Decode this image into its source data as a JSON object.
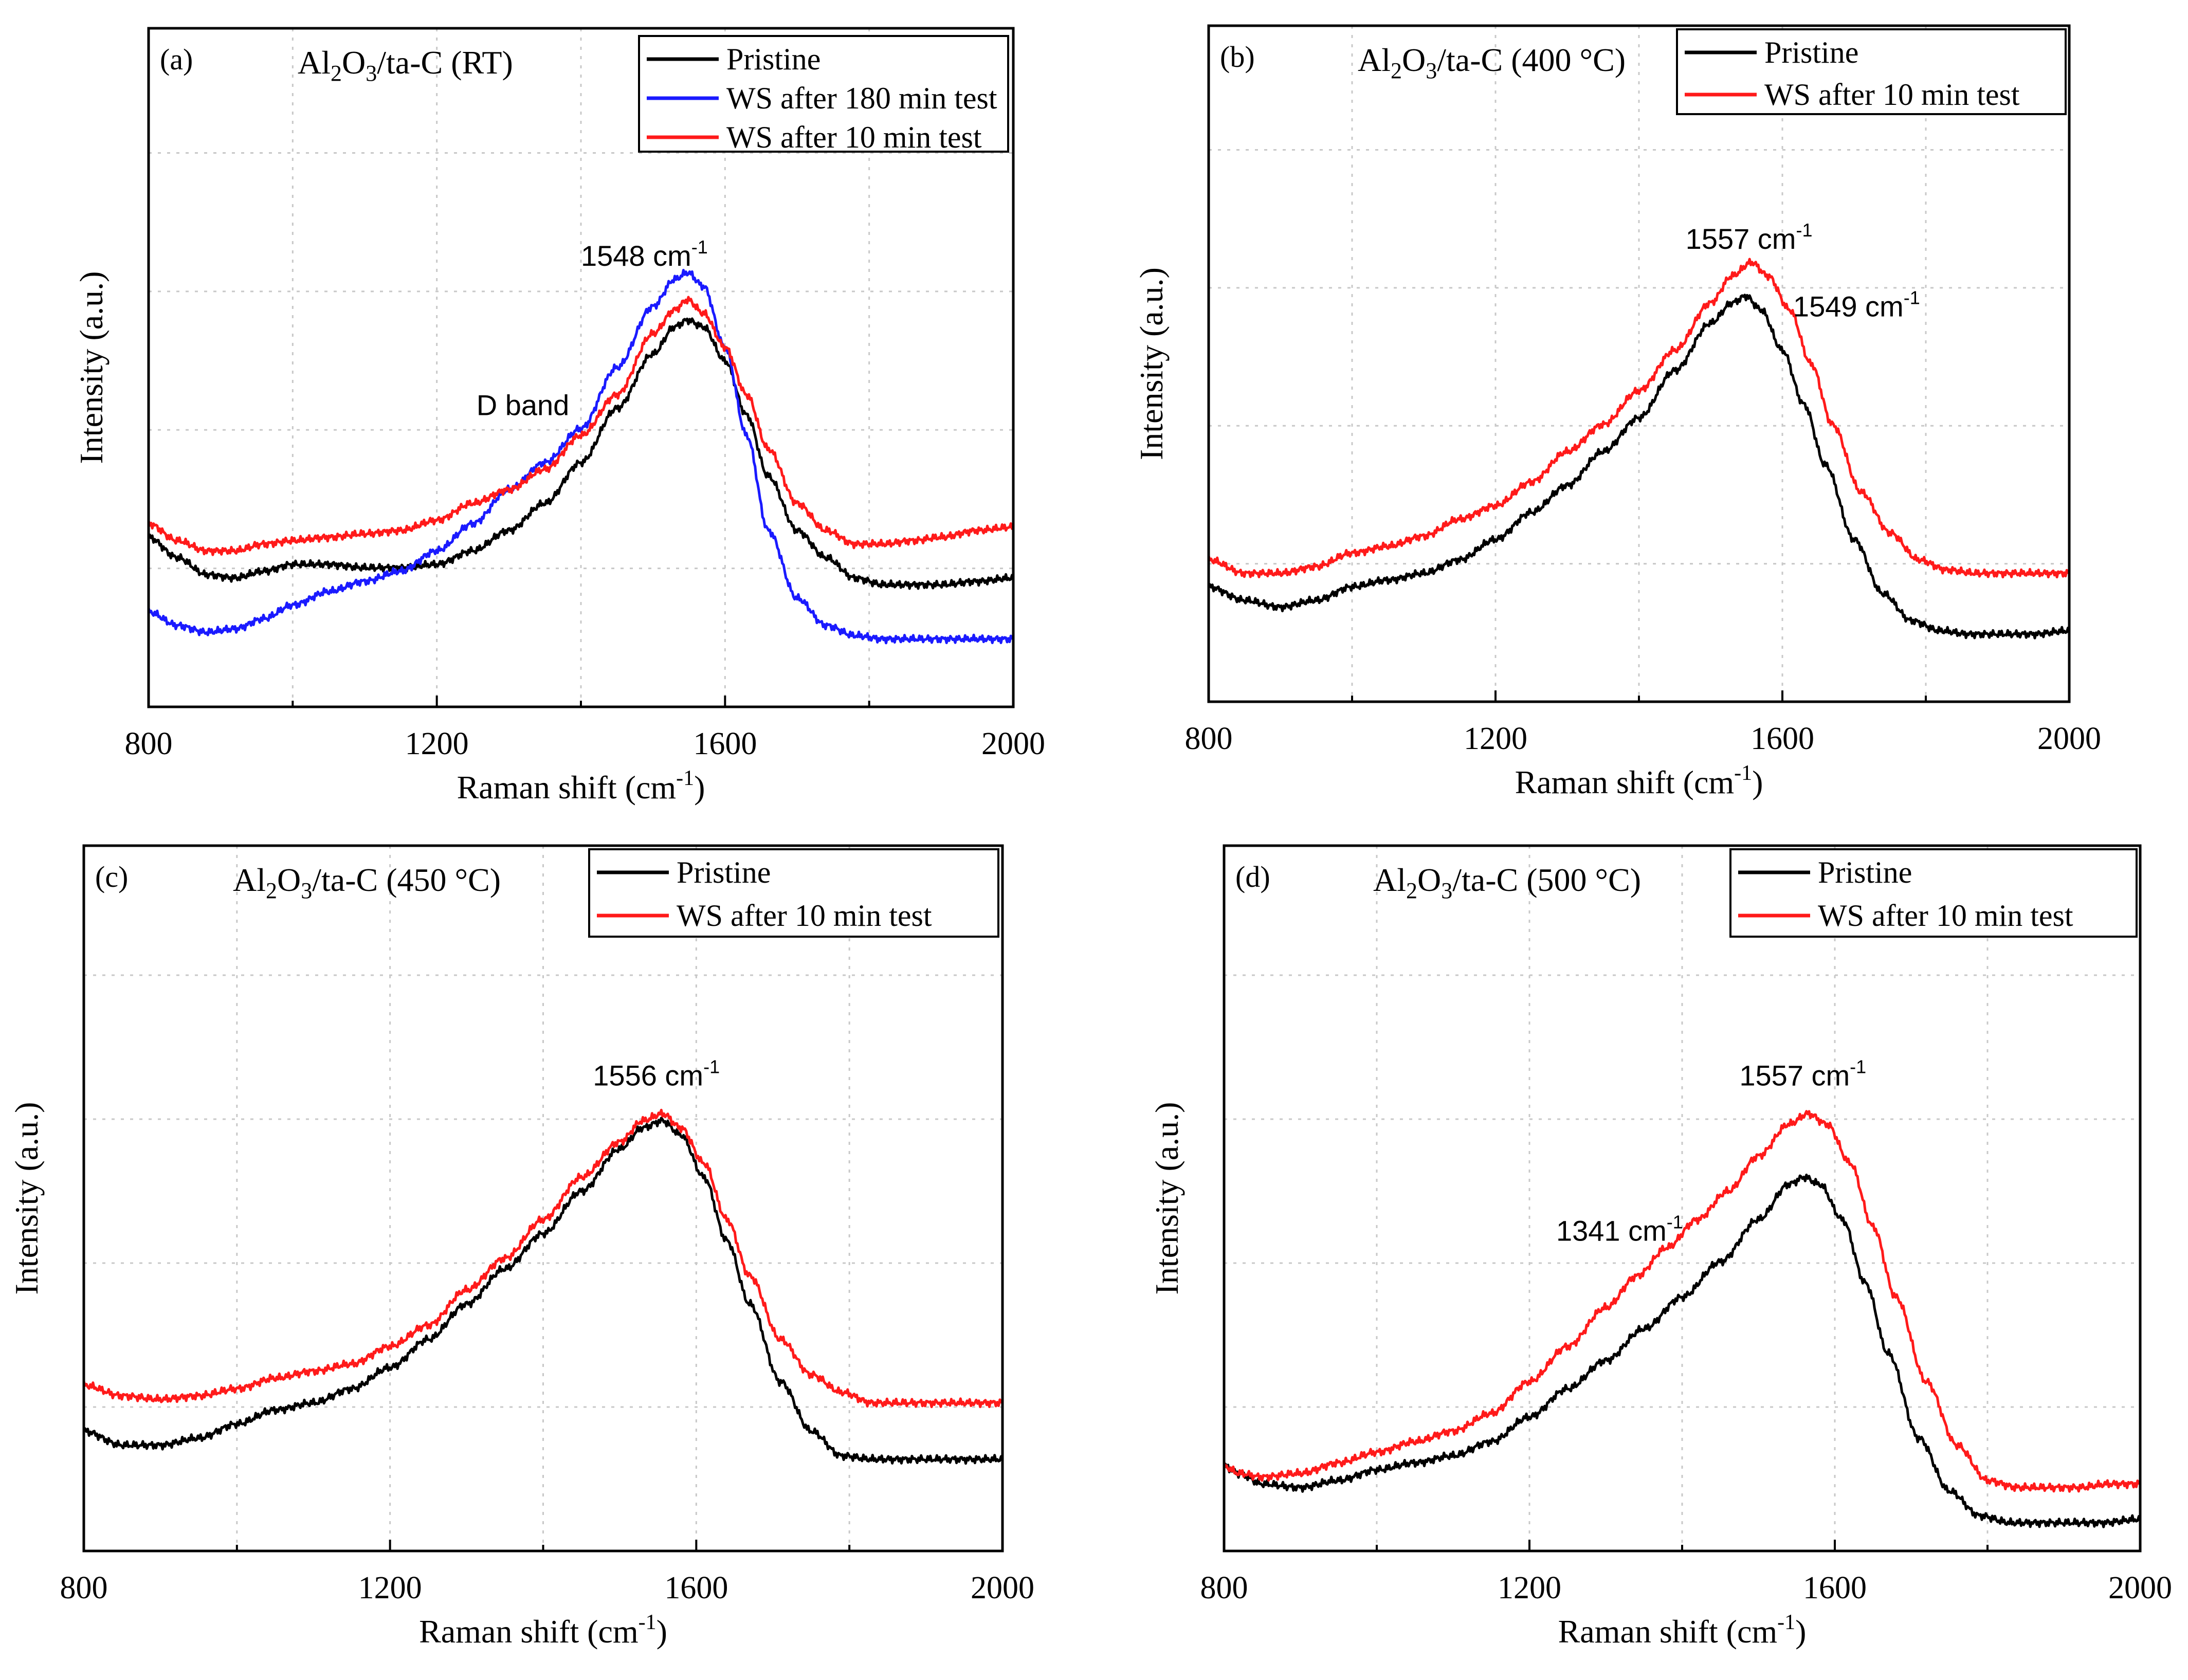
{
  "colors": {
    "pristine": "#000000",
    "ws180": "#1a1aff",
    "ws10": "#ff1a1a"
  },
  "chart_data": [
    {
      "type": "line",
      "panel_label": "(a)",
      "title_parts": [
        "Al",
        "2",
        "O",
        "3",
        "/ta-C (RT)"
      ],
      "xlabel_main": "Raman shift (cm",
      "xlabel_sup": "-1",
      "xlabel_end": ")",
      "ylabel": "Intensity (a.u.)",
      "xlim": [
        800,
        2000
      ],
      "ylim": [
        0,
        100
      ],
      "xticks": [
        "800",
        "1200",
        "1600",
        "2000"
      ],
      "legend": [
        "Pristine",
        "WS after 180 min test",
        "WS after 10 min test"
      ],
      "annotations": [
        {
          "text": "1548 cm",
          "sup": "-1",
          "x": 1400,
          "y": 65
        },
        {
          "text": "D band",
          "x": 1255,
          "y": 43
        }
      ],
      "series": [
        {
          "name": "Pristine",
          "color_key": "pristine",
          "x": [
            800,
            840,
            880,
            920,
            960,
            1000,
            1050,
            1100,
            1150,
            1200,
            1250,
            1300,
            1350,
            1400,
            1450,
            1500,
            1530,
            1548,
            1570,
            1600,
            1630,
            1660,
            1700,
            1740,
            1780,
            1820,
            1860,
            1900,
            1950,
            2000
          ],
          "y": [
            25,
            22,
            19.5,
            19,
            20,
            21,
            21,
            20.5,
            20.5,
            21,
            23,
            26,
            30,
            36,
            44,
            52,
            56,
            57,
            56,
            51,
            43,
            34,
            26,
            22,
            19,
            18,
            18,
            18,
            18.5,
            19
          ]
        },
        {
          "name": "WS after 180 min test",
          "color_key": "ws180",
          "x": [
            800,
            840,
            880,
            920,
            960,
            1000,
            1050,
            1100,
            1150,
            1200,
            1250,
            1300,
            1350,
            1400,
            1450,
            1500,
            1530,
            1548,
            1570,
            1600,
            1630,
            1660,
            1700,
            1740,
            1780,
            1820,
            1860,
            1900,
            1950,
            2000
          ],
          "y": [
            14,
            12,
            11,
            11.5,
            13,
            15,
            17,
            18.5,
            20,
            23,
            27,
            32,
            36,
            41,
            50,
            59,
            63,
            64,
            62,
            53,
            40,
            26,
            16,
            12,
            10.5,
            10,
            10,
            10,
            10,
            10
          ]
        },
        {
          "name": "WS after 10 min test",
          "color_key": "ws10",
          "x": [
            800,
            840,
            880,
            920,
            960,
            1000,
            1050,
            1100,
            1150,
            1200,
            1250,
            1300,
            1350,
            1400,
            1450,
            1500,
            1530,
            1548,
            1570,
            1600,
            1630,
            1660,
            1700,
            1740,
            1780,
            1820,
            1860,
            1900,
            1950,
            2000
          ],
          "y": [
            27,
            24.5,
            23,
            23,
            24,
            24.5,
            25,
            25.5,
            26,
            27.5,
            30,
            32,
            35,
            40,
            46,
            55,
            58.5,
            60,
            58,
            53,
            46,
            38,
            30,
            26,
            24,
            24,
            24.5,
            25,
            26,
            26.5
          ]
        }
      ]
    },
    {
      "type": "line",
      "panel_label": "(b)",
      "title_parts": [
        "Al",
        "2",
        "O",
        "3",
        "/ta-C (400 °C)"
      ],
      "xlabel_main": "Raman shift (cm",
      "xlabel_sup": "-1",
      "xlabel_end": ")",
      "ylabel": "Intensity (a.u.)",
      "xlim": [
        800,
        2000
      ],
      "ylim": [
        0,
        100
      ],
      "xticks": [
        "800",
        "1200",
        "1600",
        "2000"
      ],
      "legend": [
        "Pristine",
        "WS after 10 min test"
      ],
      "annotations": [
        {
          "text": "1557 cm",
          "sup": "-1",
          "x": 1465,
          "y": 67
        },
        {
          "text": "1549 cm",
          "sup": "-1",
          "x": 1615,
          "y": 57
        }
      ],
      "series": [
        {
          "name": "Pristine",
          "color_key": "pristine",
          "x": [
            800,
            850,
            900,
            950,
            1000,
            1050,
            1100,
            1150,
            1200,
            1250,
            1300,
            1350,
            1400,
            1450,
            1500,
            1530,
            1549,
            1570,
            1600,
            1630,
            1660,
            1700,
            1740,
            1780,
            1820,
            1860,
            1900,
            1950,
            2000
          ],
          "y": [
            17,
            15,
            14,
            15,
            17,
            18,
            19,
            21,
            24,
            28,
            32,
            37,
            42,
            49,
            56,
            59,
            60,
            58,
            52,
            44,
            35,
            24,
            16,
            12,
            10.5,
            10,
            10,
            10,
            10.5
          ]
        },
        {
          "name": "WS after 10 min test",
          "color_key": "ws10",
          "x": [
            800,
            850,
            900,
            950,
            1000,
            1050,
            1100,
            1150,
            1200,
            1250,
            1300,
            1350,
            1400,
            1450,
            1500,
            1530,
            1557,
            1580,
            1610,
            1640,
            1670,
            1710,
            1750,
            1790,
            1830,
            1870,
            1910,
            1950,
            2000
          ],
          "y": [
            21,
            19,
            19,
            20,
            22,
            23,
            24.5,
            27,
            29,
            32.5,
            37,
            41,
            46,
            52,
            59,
            63,
            65,
            63,
            58,
            50,
            41,
            31,
            25,
            21,
            19.5,
            19,
            19,
            19,
            19
          ]
        }
      ]
    },
    {
      "type": "line",
      "panel_label": "(c)",
      "title_parts": [
        "Al",
        "2",
        "O",
        "3",
        "/ta-C (450 °C)"
      ],
      "xlabel_main": "Raman shift (cm",
      "xlabel_sup": "-1",
      "xlabel_end": ")",
      "ylabel": "Intensity (a.u.)",
      "xlim": [
        800,
        2000
      ],
      "ylim": [
        0,
        100
      ],
      "xticks": [
        "800",
        "1200",
        "1600",
        "2000"
      ],
      "legend": [
        "Pristine",
        "WS after 10 min test"
      ],
      "annotations": [
        {
          "text": "1556 cm",
          "sup": "-1",
          "x": 1465,
          "y": 66
        }
      ],
      "series": [
        {
          "name": "Pristine",
          "color_key": "pristine",
          "x": [
            800,
            850,
            900,
            950,
            1000,
            1050,
            1100,
            1150,
            1200,
            1250,
            1300,
            1350,
            1400,
            1450,
            1500,
            1530,
            1556,
            1580,
            1610,
            1640,
            1670,
            1710,
            1750,
            1790,
            1830,
            1870,
            1910,
            1950,
            2000
          ],
          "y": [
            17,
            15,
            15,
            16,
            18,
            20,
            21,
            23,
            26,
            30,
            35,
            40,
            45,
            51,
            57,
            60,
            61,
            59,
            53,
            44,
            35,
            24,
            17,
            13.5,
            13,
            13,
            13,
            13,
            13
          ]
        },
        {
          "name": "WS after 10 min test",
          "color_key": "ws10",
          "x": [
            800,
            850,
            900,
            950,
            1000,
            1050,
            1100,
            1150,
            1200,
            1250,
            1300,
            1350,
            1400,
            1450,
            1500,
            1530,
            1556,
            1580,
            1610,
            1640,
            1670,
            1710,
            1750,
            1790,
            1830,
            1870,
            1910,
            1950,
            2000
          ],
          "y": [
            23.5,
            22,
            21.5,
            22,
            23,
            24.5,
            25.5,
            26.5,
            29,
            32,
            37,
            41.5,
            47,
            53,
            58,
            61,
            62,
            60,
            55,
            47,
            39,
            30,
            25,
            22.5,
            21,
            21,
            21,
            21,
            21
          ]
        }
      ]
    },
    {
      "type": "line",
      "panel_label": "(d)",
      "title_parts": [
        "Al",
        "2",
        "O",
        "3",
        "/ta-C (500 °C)"
      ],
      "xlabel_main": "Raman shift (cm",
      "xlabel_sup": "-1",
      "xlabel_end": ")",
      "ylabel": "Intensity (a.u.)",
      "xlim": [
        800,
        2000
      ],
      "ylim": [
        0,
        100
      ],
      "xticks": [
        "800",
        "1200",
        "1600",
        "2000"
      ],
      "legend": [
        "Pristine",
        "WS after 10 min test"
      ],
      "annotations": [
        {
          "text": "1557 cm",
          "sup": "-1",
          "x": 1475,
          "y": 66
        },
        {
          "text": "1341 cm",
          "sup": "-1",
          "x": 1235,
          "y": 44
        }
      ],
      "series": [
        {
          "name": "Pristine",
          "color_key": "pristine",
          "x": [
            800,
            820,
            850,
            900,
            950,
            1000,
            1050,
            1100,
            1150,
            1200,
            1250,
            1300,
            1350,
            1400,
            1450,
            1500,
            1540,
            1560,
            1580,
            1610,
            1640,
            1670,
            1710,
            1750,
            1790,
            1830,
            1870,
            1910,
            1950,
            2000
          ],
          "y": [
            12,
            11,
            9.5,
            9,
            10,
            11.5,
            12.5,
            13.5,
            15.5,
            19,
            23,
            27,
            31.5,
            36,
            41,
            47,
            52,
            53,
            52,
            47,
            38,
            28,
            16,
            8.5,
            5,
            4,
            4,
            4,
            4,
            4.5
          ]
        },
        {
          "name": "WS after 10 min test",
          "color_key": "ws10",
          "x": [
            800,
            820,
            850,
            900,
            950,
            1000,
            1050,
            1100,
            1150,
            1200,
            1250,
            1300,
            1341,
            1380,
            1420,
            1460,
            1500,
            1540,
            1565,
            1590,
            1620,
            1650,
            1680,
            1720,
            1760,
            1800,
            1840,
            1880,
            1920,
            1960,
            2000
          ],
          "y": [
            12,
            11,
            10.5,
            11,
            12.5,
            14,
            15.5,
            17,
            19.5,
            24,
            29,
            34.5,
            39,
            43,
            47,
            51,
            56,
            60.5,
            62,
            60.5,
            55,
            46,
            36,
            24,
            15,
            10,
            9,
            9,
            9,
            9.5,
            9.5
          ]
        }
      ]
    }
  ]
}
